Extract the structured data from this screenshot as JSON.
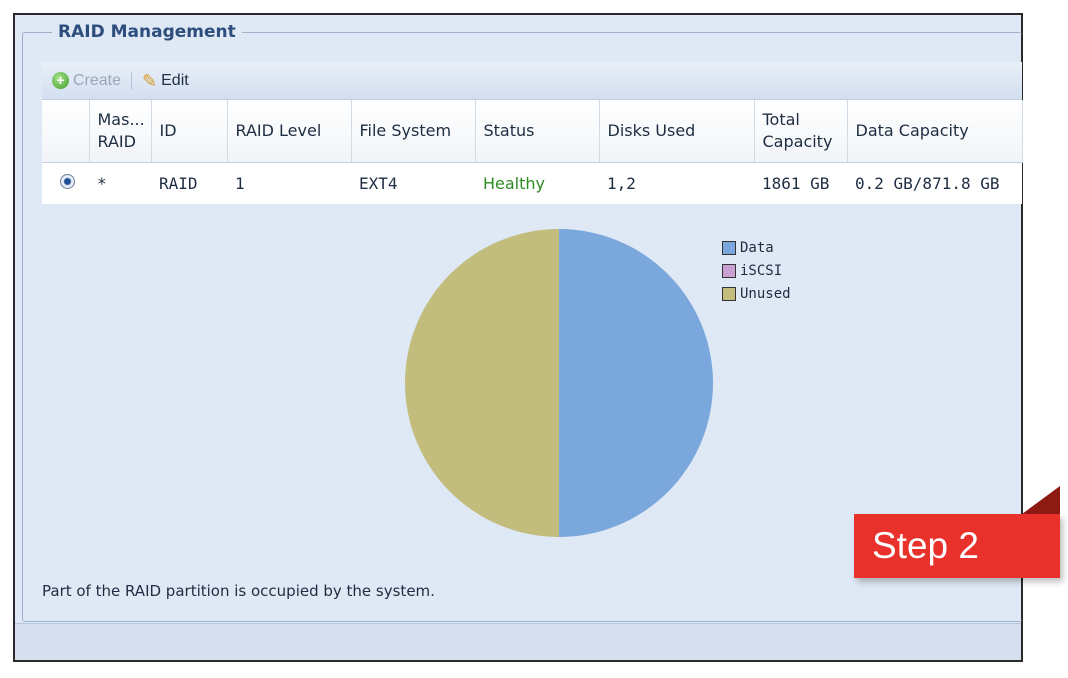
{
  "panel": {
    "title": "RAID Management",
    "toolbar": {
      "create_label": "Create",
      "edit_label": "Edit",
      "create_icon": "add-circle-icon",
      "edit_icon": "pencil-icon"
    }
  },
  "table": {
    "headers": [
      "Mas... RAID",
      "ID",
      "RAID Level",
      "File System",
      "Status",
      "Disks Used",
      "Total Capacity",
      "Data Capacity"
    ],
    "rows": [
      {
        "master": "*",
        "id": "RAID",
        "level": "1",
        "file_system": "EXT4",
        "status": "Healthy",
        "disks_used": "1,2",
        "total_capacity": "1861 GB",
        "data_capacity": "0.2 GB/871.8 GB"
      }
    ]
  },
  "chart_data": {
    "type": "pie",
    "categories": [
      "Data",
      "iSCSI",
      "Unused"
    ],
    "values": [
      50,
      0,
      50
    ],
    "colors": [
      "#7aa7dc",
      "#c8a0d2",
      "#c2bd7c"
    ]
  },
  "note": "Part of the RAID partition is occupied by the system.",
  "badge": {
    "label": "Step 2",
    "color": "#e8312a"
  }
}
